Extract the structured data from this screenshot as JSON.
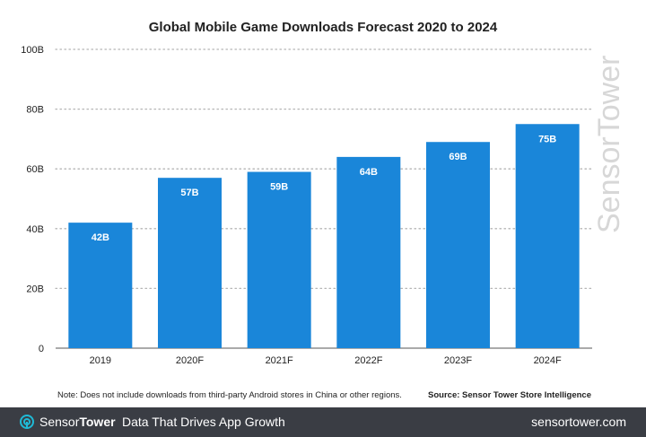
{
  "chart_data": {
    "type": "bar",
    "title": "Global Mobile Game Downloads Forecast 2020 to 2024",
    "categories": [
      "2019",
      "2020F",
      "2021F",
      "2022F",
      "2023F",
      "2024F"
    ],
    "values": [
      42,
      57,
      59,
      64,
      69,
      75
    ],
    "data_labels": [
      "42B",
      "57B",
      "59B",
      "64B",
      "69B",
      "75B"
    ],
    "yticks": [
      0,
      20,
      40,
      60,
      80,
      100
    ],
    "ytick_labels": [
      "0",
      "20B",
      "40B",
      "60B",
      "80B",
      "100B"
    ],
    "ylim": [
      0,
      100
    ],
    "grid": "horizontal dotted",
    "bar_color": "#1a86d9",
    "label_color": "#ffffff"
  },
  "note": "Note: Does not include downloads from third-party Android stores in China or other regions.",
  "source": "Source: Sensor Tower Store Intelligence",
  "watermark": "SensorTower",
  "footer": {
    "brand_light": "Sensor",
    "brand_bold": "Tower",
    "tagline": "Data That Drives App Growth",
    "site": "sensortower.com",
    "logo_icon": "sensor-tower-logo-icon",
    "background": "#3a3d44",
    "accent": "#1fbad6"
  }
}
